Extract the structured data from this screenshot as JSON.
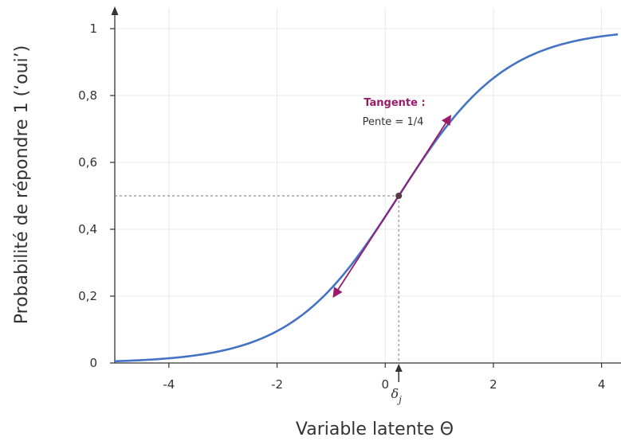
{
  "chart_data": {
    "type": "line",
    "title": "",
    "xlabel": "Variable latente Θ",
    "ylabel": "Probabilité de répondre 1 (‘oui’)",
    "xlim": [
      -5,
      4.3
    ],
    "ylim": [
      0,
      1
    ],
    "x_ticks": [
      -4,
      -2,
      0,
      2,
      4
    ],
    "y_ticks": [
      0,
      0.2,
      0.4,
      0.6,
      0.8,
      1
    ],
    "x_tick_labels": [
      "-4",
      "-2",
      "0",
      "2",
      "4"
    ],
    "y_tick_labels": [
      "0",
      "0,2",
      "0,4",
      "0,6",
      "0,8",
      "1"
    ],
    "grid": true,
    "series": [
      {
        "color": "#4472C4",
        "x": [
          -5,
          -4,
          -3.5,
          -3,
          -2.5,
          -2,
          -1.5,
          -1,
          -0.5,
          0,
          0.25,
          0.5,
          1,
          1.5,
          2,
          2.5,
          3,
          3.5,
          4,
          4.3
        ],
        "y": [
          0.005,
          0.014,
          0.023,
          0.037,
          0.059,
          0.095,
          0.148,
          0.223,
          0.321,
          0.438,
          0.5,
          0.562,
          0.679,
          0.777,
          0.852,
          0.905,
          0.941,
          0.963,
          0.977,
          0.983
        ]
      }
    ],
    "tangent": {
      "color": "#9B1B6A",
      "title": "Tangente :",
      "text": "Pente = 1/4",
      "slope": 0.25,
      "x_from": -0.95,
      "x_to": 1.2
    },
    "point": {
      "x": 0.25,
      "y": 0.5,
      "label_base": "δ",
      "label_sub": "j",
      "color": "#5a3a4a"
    }
  }
}
